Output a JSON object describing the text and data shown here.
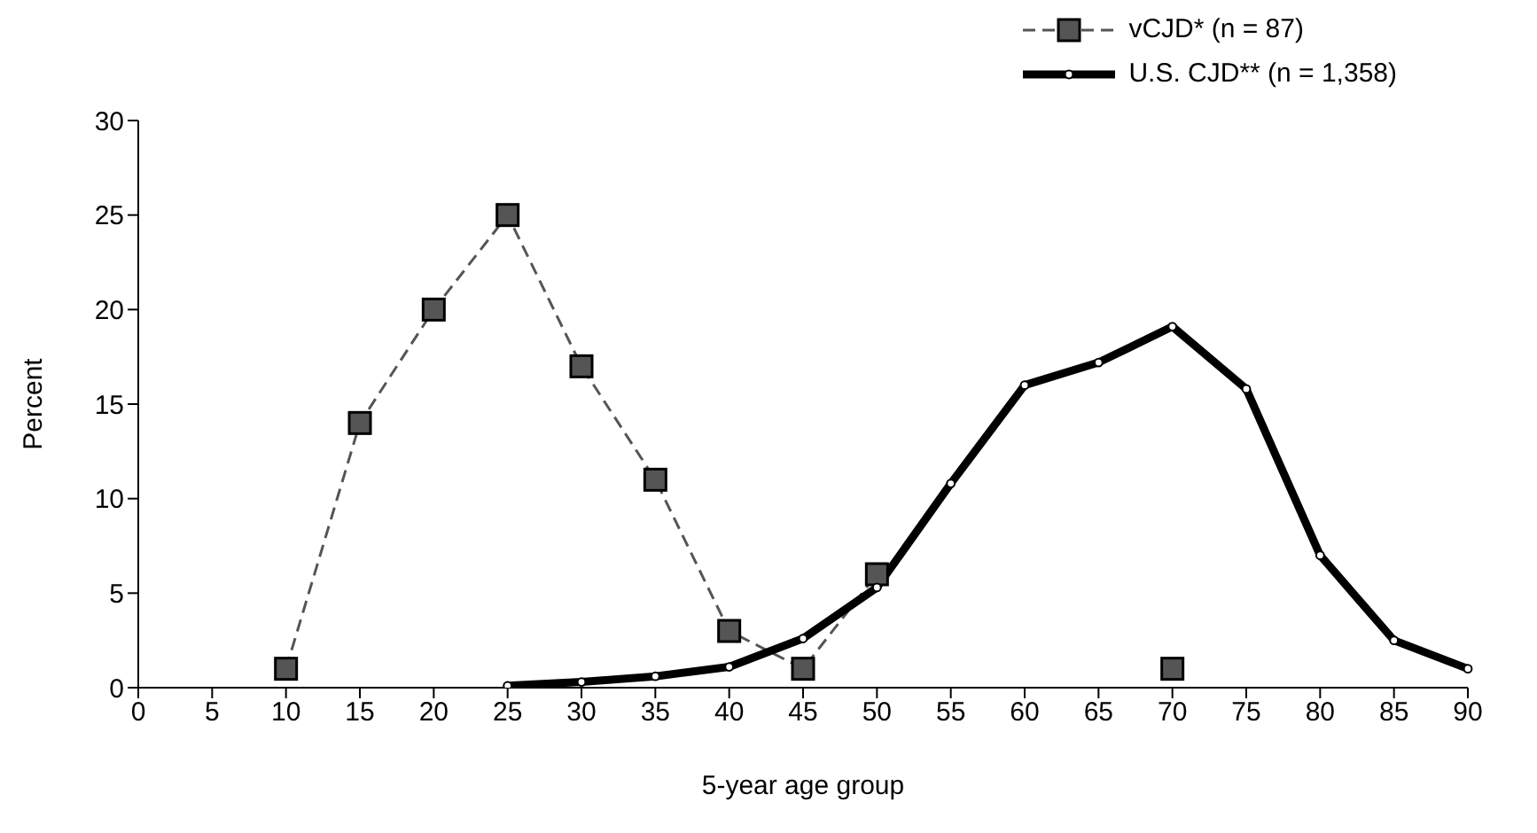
{
  "chart_data": {
    "type": "line",
    "xlabel": "5-year age group",
    "ylabel": "Percent",
    "categories": [
      "0",
      "5",
      "10",
      "15",
      "20",
      "25",
      "30",
      "35",
      "40",
      "45",
      "50",
      "55",
      "60",
      "65",
      "70",
      "75",
      "80",
      "85",
      "90"
    ],
    "series": [
      {
        "name": "vCJD* (n = 87)",
        "color": "#555555",
        "marker": "square",
        "line_style": "dashed",
        "values": [
          null,
          null,
          1,
          14,
          20,
          25,
          17,
          11,
          3,
          1,
          6,
          null,
          null,
          null,
          1,
          null,
          null,
          null,
          null
        ]
      },
      {
        "name": "U.S. CJD** (n = 1,358)",
        "color": "#000000",
        "marker": "circle",
        "line_style": "solid",
        "values": [
          null,
          null,
          null,
          null,
          null,
          0.1,
          0.3,
          0.6,
          1.1,
          2.6,
          5.3,
          10.8,
          16,
          17.2,
          19.1,
          15.8,
          7,
          2.5,
          1
        ]
      }
    ],
    "ylim": [
      0,
      30
    ],
    "yticks": [
      0,
      5,
      10,
      15,
      20,
      25,
      30
    ],
    "grid": false,
    "legend": "top right"
  }
}
